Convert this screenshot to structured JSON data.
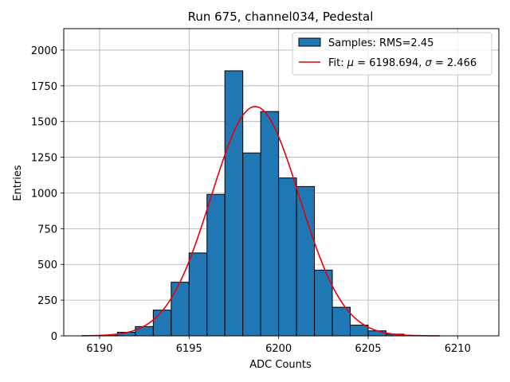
{
  "chart_data": {
    "type": "histogram",
    "title": "Run 675, channel034, Pedestal",
    "xlabel": "ADC Counts",
    "ylabel": "Entries",
    "xlim": [
      6188,
      6212.3
    ],
    "ylim": [
      0,
      2150
    ],
    "xticks": [
      6190,
      6195,
      6200,
      6205,
      6210
    ],
    "yticks": [
      0,
      250,
      500,
      750,
      1000,
      1250,
      1500,
      1750,
      2000
    ],
    "grid": true,
    "bin_width": 1,
    "bins": [
      {
        "x": 6189,
        "value": 0
      },
      {
        "x": 6190,
        "value": 3
      },
      {
        "x": 6191,
        "value": 25
      },
      {
        "x": 6192,
        "value": 65
      },
      {
        "x": 6193,
        "value": 180
      },
      {
        "x": 6194,
        "value": 375
      },
      {
        "x": 6195,
        "value": 580
      },
      {
        "x": 6196,
        "value": 990
      },
      {
        "x": 6197,
        "value": 1855
      },
      {
        "x": 6198,
        "value": 1280
      },
      {
        "x": 6199,
        "value": 1570
      },
      {
        "x": 6200,
        "value": 1105
      },
      {
        "x": 6201,
        "value": 1045
      },
      {
        "x": 6202,
        "value": 460
      },
      {
        "x": 6203,
        "value": 200
      },
      {
        "x": 6204,
        "value": 75
      },
      {
        "x": 6205,
        "value": 35
      },
      {
        "x": 6206,
        "value": 12
      },
      {
        "x": 6207,
        "value": 3
      },
      {
        "x": 6208,
        "value": 0
      }
    ],
    "fit": {
      "mu": 6198.694,
      "sigma": 2.466,
      "amplitude": 1605,
      "x_range": [
        6189,
        6209
      ]
    },
    "bar_color": "#1f77b4",
    "bar_edge_color": "#000000",
    "fit_color": "#e8000b",
    "legend": {
      "position": "top-right",
      "entries": [
        {
          "name": "samples",
          "label": "Samples: RMS=2.45"
        },
        {
          "name": "fit",
          "label_prefix": "Fit: ",
          "mu_symbol": "μ",
          "mu_text": " = 6198.694, ",
          "sigma_symbol": "σ",
          "sigma_text": " = 2.466"
        }
      ]
    }
  }
}
